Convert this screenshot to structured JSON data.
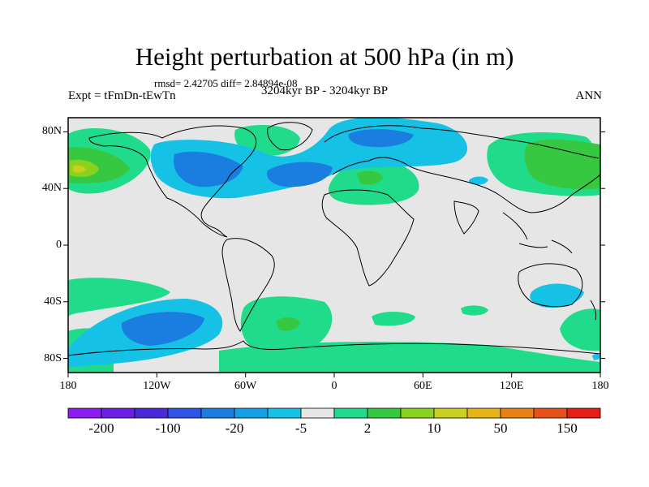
{
  "header": {
    "title": "Height perturbation at 500 hPa (in m)",
    "stats": "rmsd= 2.42705  diff= 2.84894e-08",
    "experiment": "Expt = tFmDn-tEwTn",
    "period": "3204kyr BP - 3204kyr BP",
    "season": "ANN"
  },
  "axes": {
    "lat_ticks": [
      {
        "label": "80N",
        "value": 80
      },
      {
        "label": "40N",
        "value": 40
      },
      {
        "label": "0",
        "value": 0
      },
      {
        "label": "40S",
        "value": -40
      },
      {
        "label": "80S",
        "value": -80
      }
    ],
    "lon_ticks": [
      {
        "label": "180",
        "value": -180
      },
      {
        "label": "120W",
        "value": -120
      },
      {
        "label": "60W",
        "value": -60
      },
      {
        "label": "0",
        "value": 0
      },
      {
        "label": "60E",
        "value": 60
      },
      {
        "label": "120E",
        "value": 120
      },
      {
        "label": "180",
        "value": 180
      }
    ],
    "lon_range": [
      -180,
      180
    ],
    "lat_range": [
      -90,
      90
    ]
  },
  "colorbar": {
    "colors": [
      "#8c1cf0",
      "#6a1ee6",
      "#4a2ad8",
      "#2f55e8",
      "#1a7de0",
      "#14a0e6",
      "#15c2e6",
      "#e6e6e6",
      "#20dc8a",
      "#37c842",
      "#8ad21e",
      "#c8d21e",
      "#e6b414",
      "#e88214",
      "#e8501a",
      "#e61e14"
    ],
    "labels": [
      {
        "text": "-200",
        "boundary": 1
      },
      {
        "text": "-100",
        "boundary": 3
      },
      {
        "text": "-20",
        "boundary": 5
      },
      {
        "text": "-5",
        "boundary": 7
      },
      {
        "text": "2",
        "boundary": 9
      },
      {
        "text": "10",
        "boundary": 11
      },
      {
        "text": "50",
        "boundary": 13
      },
      {
        "text": "150",
        "boundary": 15
      }
    ]
  },
  "fill_colors": {
    "ocean_background": "#e6e6e6",
    "negative_light": "#15c2e6",
    "negative_mid": "#1a7de0",
    "positive_light": "#20dc8a",
    "positive_mid": "#37c842",
    "positive_high": "#8ad21e"
  }
}
